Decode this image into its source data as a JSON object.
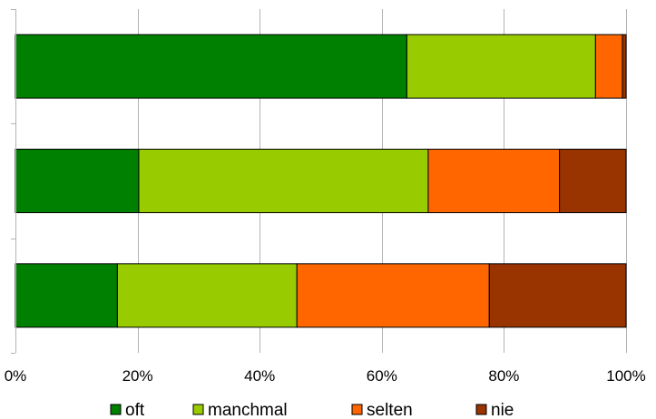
{
  "chart_data": {
    "type": "bar",
    "orientation": "horizontal",
    "stacked": "percent",
    "categories": [
      "",
      "",
      ""
    ],
    "series": [
      {
        "name": "oft",
        "color": "#008000",
        "values": [
          64.1,
          20.2,
          16.7
        ]
      },
      {
        "name": "manchmal",
        "color": "#99CC00",
        "values": [
          30.9,
          47.4,
          29.4
        ]
      },
      {
        "name": "selten",
        "color": "#FF6600",
        "values": [
          4.4,
          21.5,
          31.5
        ]
      },
      {
        "name": "nie",
        "color": "#993300",
        "values": [
          0.6,
          10.9,
          22.4
        ]
      }
    ],
    "xlim": [
      0,
      100
    ],
    "xticks": [
      "0%",
      "20%",
      "40%",
      "60%",
      "80%",
      "100%"
    ],
    "grid": true,
    "legend": "bottom"
  }
}
